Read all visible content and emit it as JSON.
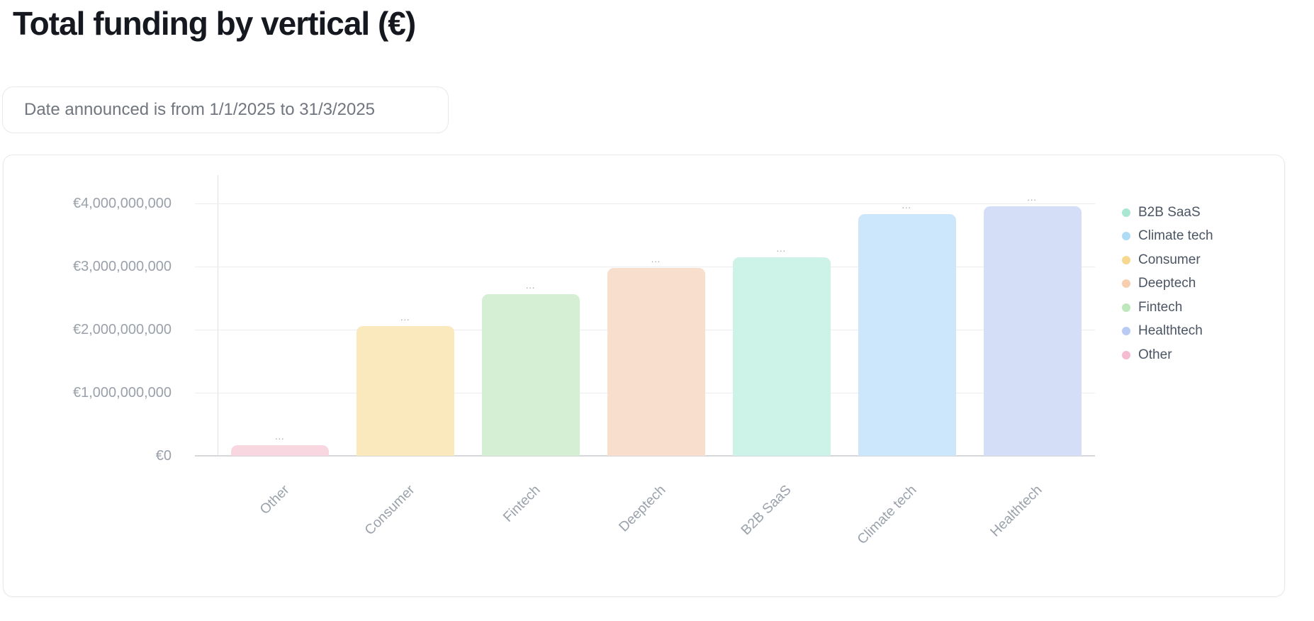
{
  "page": {
    "title": "Total funding by vertical (€)"
  },
  "filter_chip": {
    "label": "Date announced is from 1/1/2025 to 31/3/2025"
  },
  "chart_data": {
    "type": "bar",
    "title": "Total funding by vertical (€)",
    "currency": "EUR",
    "categories": [
      "Other",
      "Consumer",
      "Fintech",
      "Deeptech",
      "B2B SaaS",
      "Climate tech",
      "Healthtech"
    ],
    "values": [
      170000000,
      2060000000,
      2560000000,
      2980000000,
      3150000000,
      3830000000,
      3950000000
    ],
    "bar_value_label": "…",
    "xlabel": "",
    "ylabel": "",
    "ylim": [
      0,
      4450000000
    ],
    "grid": true,
    "legend_position": "right",
    "y_ticks": [
      {
        "value": 0,
        "label": "€0"
      },
      {
        "value": 1000000000,
        "label": "€1,000,000,000"
      },
      {
        "value": 2000000000,
        "label": "€2,000,000,000"
      },
      {
        "value": 3000000000,
        "label": "€3,000,000,000"
      },
      {
        "value": 4000000000,
        "label": "€4,000,000,000"
      }
    ],
    "bar_colors": {
      "Other": "#F8D7E1",
      "Consumer": "#FAE9BC",
      "Fintech": "#D4EFD3",
      "Deeptech": "#F8DECC",
      "B2B SaaS": "#CDF2E8",
      "Climate tech": "#CCE7FB",
      "Healthtech": "#D5DEF7"
    },
    "legend": [
      {
        "label": "B2B SaaS",
        "color": "#A9E7D2"
      },
      {
        "label": "Climate tech",
        "color": "#AEDCF7"
      },
      {
        "label": "Consumer",
        "color": "#F7D88F"
      },
      {
        "label": "Deeptech",
        "color": "#F6CFAE"
      },
      {
        "label": "Fintech",
        "color": "#BDE8BB"
      },
      {
        "label": "Healthtech",
        "color": "#B9CBF4"
      },
      {
        "label": "Other",
        "color": "#F5BCD1"
      }
    ]
  }
}
